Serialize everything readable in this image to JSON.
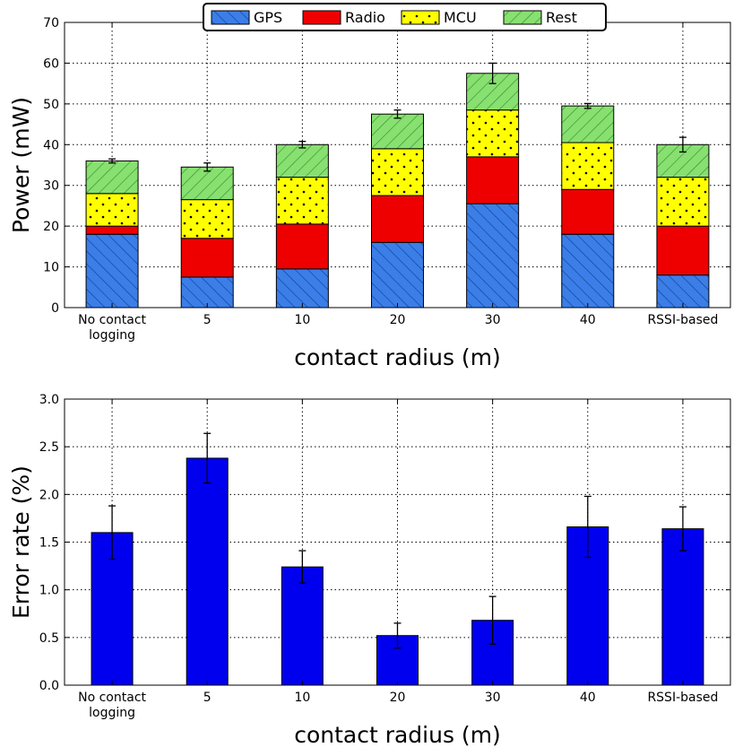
{
  "chart_data": [
    {
      "type": "bar",
      "stacked": true,
      "categories": [
        "No contact\nlogging",
        "5",
        "10",
        "20",
        "30",
        "40",
        "RSSI-based"
      ],
      "xlabel": "contact radius (m)",
      "ylabel": "Power (mW)",
      "ylim": [
        0,
        70
      ],
      "yticks": [
        0,
        10,
        20,
        30,
        40,
        50,
        60,
        70
      ],
      "grid": true,
      "legend": "top-center",
      "series": [
        {
          "name": "GPS",
          "color": "#3b7ee8",
          "pattern": "diagonal-hatch",
          "values": [
            18.0,
            7.5,
            9.5,
            16.0,
            25.5,
            18.0,
            8.0
          ]
        },
        {
          "name": "Radio",
          "color": "#ee0000",
          "pattern": "solid",
          "values": [
            2.0,
            9.5,
            11.0,
            11.5,
            11.5,
            11.0,
            12.0
          ]
        },
        {
          "name": "MCU",
          "color": "#ffff00",
          "pattern": "dots",
          "values": [
            8.0,
            9.5,
            11.5,
            11.5,
            11.5,
            11.5,
            12.0
          ]
        },
        {
          "name": "Rest",
          "color": "#88e070",
          "pattern": "back-diagonal-hatch",
          "values": [
            8.0,
            8.0,
            8.0,
            8.5,
            9.0,
            9.0,
            8.0
          ]
        }
      ],
      "totals": [
        36.0,
        34.5,
        40.0,
        47.5,
        57.5,
        49.5,
        40.0
      ],
      "error": [
        0.5,
        1.0,
        0.8,
        1.0,
        2.5,
        0.6,
        1.8
      ]
    },
    {
      "type": "bar",
      "categories": [
        "No contact\nlogging",
        "5",
        "10",
        "20",
        "30",
        "40",
        "RSSI-based"
      ],
      "xlabel": "contact radius (m)",
      "ylabel": "Error rate (%)",
      "ylim": [
        0,
        3.0
      ],
      "yticks": [
        "0.0",
        "0.5",
        "1.0",
        "1.5",
        "2.0",
        "2.5",
        "3.0"
      ],
      "grid": true,
      "color": "#0000ee",
      "values": [
        1.6,
        2.38,
        1.24,
        0.52,
        0.68,
        1.66,
        1.64
      ],
      "error": [
        0.28,
        0.26,
        0.17,
        0.13,
        0.25,
        0.32,
        0.23
      ]
    }
  ]
}
